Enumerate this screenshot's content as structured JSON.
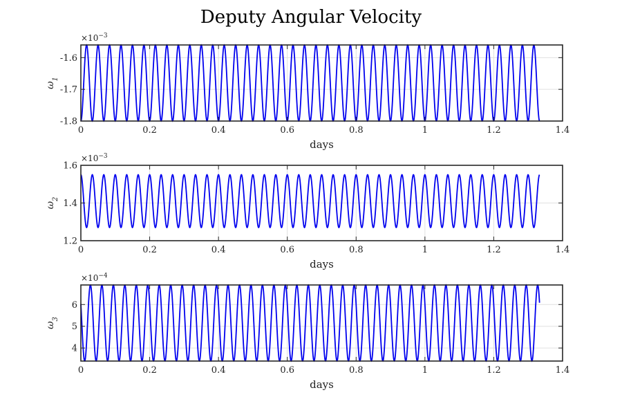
{
  "figure": {
    "title": "Deputy Angular Velocity"
  },
  "chart_data": [
    {
      "type": "line",
      "ylabel": "ω1",
      "ylabel_base": "ω",
      "ylabel_sub": "1",
      "xlabel": "days",
      "exponent_label": "×10−3",
      "exponent_base": "×10",
      "exponent_power": "−3",
      "xlim": [
        0,
        1.4
      ],
      "ylim": [
        -1.8,
        -1.56
      ],
      "xticks": [
        0,
        0.2,
        0.4,
        0.6,
        0.8,
        1.0,
        1.2,
        1.4
      ],
      "xticklabels": [
        "0",
        "0.2",
        "0.4",
        "0.6",
        "0.8",
        "1",
        "1.2",
        "1.4"
      ],
      "yticks": [
        -1.8,
        -1.7,
        -1.6
      ],
      "yticklabels": [
        "-1.8",
        "-1.7",
        "-1.6"
      ],
      "grid": true,
      "color": "#0000ee",
      "series": [
        {
          "signal": "sinusoid",
          "mean": -1.68,
          "amplitude": 0.12,
          "period_days": 0.03333,
          "phase_deg": 180,
          "x_start": 0,
          "x_end": 1.333,
          "samples": 2000
        }
      ]
    },
    {
      "type": "line",
      "ylabel": "ω2",
      "ylabel_base": "ω",
      "ylabel_sub": "2",
      "xlabel": "days",
      "exponent_label": "×10−3",
      "exponent_base": "×10",
      "exponent_power": "−3",
      "xlim": [
        0,
        1.4
      ],
      "ylim": [
        1.2,
        1.6
      ],
      "xticks": [
        0,
        0.2,
        0.4,
        0.6,
        0.8,
        1.0,
        1.2,
        1.4
      ],
      "xticklabels": [
        "0",
        "0.2",
        "0.4",
        "0.6",
        "0.8",
        "1",
        "1.2",
        "1.4"
      ],
      "yticks": [
        1.2,
        1.4,
        1.6
      ],
      "yticklabels": [
        "1.2",
        "1.4",
        "1.6"
      ],
      "grid": true,
      "color": "#0000ee",
      "series": [
        {
          "signal": "sinusoid",
          "mean": 1.41,
          "amplitude": 0.14,
          "period_days": 0.03333,
          "phase_deg": 0,
          "x_start": 0,
          "x_end": 1.333,
          "samples": 2000
        }
      ]
    },
    {
      "type": "line",
      "ylabel": "ω3",
      "ylabel_base": "ω",
      "ylabel_sub": "3",
      "xlabel": "days",
      "exponent_label": "×10−4",
      "exponent_base": "×10",
      "exponent_power": "−4",
      "xlim": [
        0,
        1.4
      ],
      "ylim": [
        3.4,
        6.9
      ],
      "xticks": [
        0,
        0.2,
        0.4,
        0.6,
        0.8,
        1.0,
        1.2,
        1.4
      ],
      "xticklabels": [
        "0",
        "0.2",
        "0.4",
        "0.6",
        "0.8",
        "1",
        "1.2",
        "1.4"
      ],
      "yticks": [
        4,
        5,
        6
      ],
      "yticklabels": [
        "4",
        "5",
        "6"
      ],
      "grid": true,
      "color": "#0000ee",
      "series": [
        {
          "signal": "sinusoid",
          "mean": 5.15,
          "amplitude": 1.75,
          "period_days": 0.03333,
          "phase_deg": 60,
          "x_start": 0,
          "x_end": 1.333,
          "samples": 2000
        }
      ]
    }
  ]
}
